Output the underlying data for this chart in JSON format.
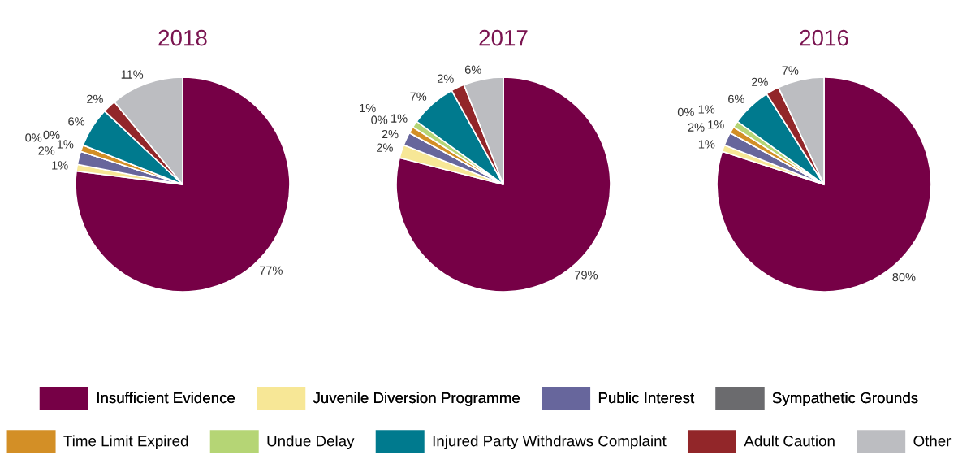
{
  "chart_data": [
    {
      "type": "pie",
      "title": "2018",
      "categories": [
        "Insufficient Evidence",
        "Juvenile Diversion Programme",
        "Public Interest",
        "Sympathetic Grounds",
        "Time Limit Expired",
        "Undue Delay",
        "Injured Party Withdraws Complaint",
        "Adult Caution",
        "Other"
      ],
      "values": [
        77,
        1,
        2,
        0,
        1,
        0,
        6,
        2,
        11
      ],
      "value_labels": [
        "77%",
        "1%",
        "2%",
        "0%",
        "1%",
        "0%",
        "6%",
        "2%",
        "11%"
      ],
      "colors": [
        "#760046",
        "#f7e796",
        "#67669c",
        "#6b6b6e",
        "#d38f26",
        "#b5d575",
        "#007a8e",
        "#922629",
        "#bcbdc1"
      ],
      "legend": "bottom"
    },
    {
      "type": "pie",
      "title": "2017",
      "values": [
        79,
        2,
        2,
        0,
        1,
        1,
        7,
        2,
        6
      ],
      "value_labels": [
        "79%",
        "2%",
        "2%",
        "0%",
        "1%",
        "1%",
        "7%",
        "2%",
        "6%"
      ],
      "colors": [
        "#760046",
        "#f7e796",
        "#67669c",
        "#6b6b6e",
        "#d38f26",
        "#b5d575",
        "#007a8e",
        "#922629",
        "#bcbdc1"
      ]
    },
    {
      "type": "pie",
      "title": "2016",
      "values": [
        80,
        1,
        2,
        0,
        1,
        1,
        6,
        2,
        7
      ],
      "value_labels": [
        "80%",
        "1%",
        "2%",
        "0%",
        "1%",
        "1%",
        "6%",
        "2%",
        "7%"
      ],
      "colors": [
        "#760046",
        "#f7e796",
        "#67669c",
        "#6b6b6e",
        "#d38f26",
        "#b5d575",
        "#007a8e",
        "#922629",
        "#bcbdc1"
      ]
    }
  ]
}
